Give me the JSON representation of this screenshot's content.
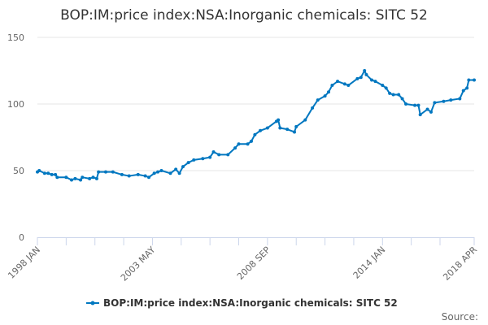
{
  "chart_data": {
    "type": "line",
    "title": "BOP:IM:price index:NSA:Inorganic chemicals: SITC 52",
    "xlabel": "",
    "ylabel": "",
    "ylim": [
      0,
      150
    ],
    "yticks": [
      "0",
      "50",
      "100",
      "150"
    ],
    "xrange": [
      "1998-01",
      "2018-04"
    ],
    "xtick_labels": [
      {
        "date": "1998-01",
        "label": "1998 JAN"
      },
      {
        "date": "2003-05",
        "label": "2003 MAY"
      },
      {
        "date": "2008-09",
        "label": "2008 SEP"
      },
      {
        "date": "2014-01",
        "label": "2014 JAN"
      },
      {
        "date": "2018-04",
        "label": "2018 APR"
      }
    ],
    "minor_tick_dates": [
      "1999-05",
      "2000-09",
      "2002-01",
      "2004-09",
      "2006-01",
      "2007-05",
      "2010-01",
      "2011-05",
      "2012-09",
      "2015-05",
      "2016-09"
    ],
    "grid": true,
    "legend_position": "bottom",
    "series": [
      {
        "name": "BOP:IM:price index:NSA:Inorganic chemicals: SITC 52",
        "color": "#0077c0",
        "points": [
          [
            "1998-01",
            49
          ],
          [
            "1998-02",
            50
          ],
          [
            "1998-05",
            48
          ],
          [
            "1998-07",
            48
          ],
          [
            "1998-09",
            47
          ],
          [
            "1998-11",
            47
          ],
          [
            "1998-12",
            45
          ],
          [
            "1999-05",
            45
          ],
          [
            "1999-08",
            43
          ],
          [
            "1999-10",
            44
          ],
          [
            "2000-01",
            43
          ],
          [
            "2000-02",
            45
          ],
          [
            "2000-06",
            44
          ],
          [
            "2000-08",
            45
          ],
          [
            "2000-10",
            44
          ],
          [
            "2000-11",
            49
          ],
          [
            "2001-03",
            49
          ],
          [
            "2001-07",
            49
          ],
          [
            "2001-12",
            47
          ],
          [
            "2002-04",
            46
          ],
          [
            "2002-09",
            47
          ],
          [
            "2003-01",
            46
          ],
          [
            "2003-03",
            45
          ],
          [
            "2003-06",
            48
          ],
          [
            "2003-08",
            49
          ],
          [
            "2003-10",
            50
          ],
          [
            "2004-03",
            48
          ],
          [
            "2004-06",
            51
          ],
          [
            "2004-08",
            48
          ],
          [
            "2004-10",
            53
          ],
          [
            "2005-01",
            56
          ],
          [
            "2005-04",
            58
          ],
          [
            "2005-09",
            59
          ],
          [
            "2006-01",
            60
          ],
          [
            "2006-03",
            64
          ],
          [
            "2006-06",
            62
          ],
          [
            "2006-11",
            62
          ],
          [
            "2007-03",
            67
          ],
          [
            "2007-05",
            70
          ],
          [
            "2007-10",
            70
          ],
          [
            "2007-12",
            72
          ],
          [
            "2008-02",
            77
          ],
          [
            "2008-05",
            80
          ],
          [
            "2008-09",
            82
          ],
          [
            "2009-02",
            87
          ],
          [
            "2009-03",
            88
          ],
          [
            "2009-04",
            82
          ],
          [
            "2009-08",
            81
          ],
          [
            "2009-12",
            79
          ],
          [
            "2010-01",
            83
          ],
          [
            "2010-06",
            88
          ],
          [
            "2010-10",
            97
          ],
          [
            "2011-01",
            103
          ],
          [
            "2011-05",
            106
          ],
          [
            "2011-07",
            109
          ],
          [
            "2011-09",
            114
          ],
          [
            "2011-12",
            117
          ],
          [
            "2012-04",
            115
          ],
          [
            "2012-06",
            114
          ],
          [
            "2012-11",
            119
          ],
          [
            "2013-01",
            120
          ],
          [
            "2013-03",
            125
          ],
          [
            "2013-04",
            122
          ],
          [
            "2013-07",
            118
          ],
          [
            "2013-09",
            117
          ],
          [
            "2014-01",
            114
          ],
          [
            "2014-03",
            112
          ],
          [
            "2014-05",
            108
          ],
          [
            "2014-07",
            107
          ],
          [
            "2014-10",
            107
          ],
          [
            "2014-12",
            104
          ],
          [
            "2015-02",
            100
          ],
          [
            "2015-07",
            99
          ],
          [
            "2015-09",
            99
          ],
          [
            "2015-10",
            92
          ],
          [
            "2016-02",
            96
          ],
          [
            "2016-04",
            94
          ],
          [
            "2016-06",
            101
          ],
          [
            "2016-11",
            102
          ],
          [
            "2017-03",
            103
          ],
          [
            "2017-08",
            104
          ],
          [
            "2017-10",
            110
          ],
          [
            "2017-12",
            112
          ],
          [
            "2018-01",
            118
          ],
          [
            "2018-04",
            118
          ]
        ]
      }
    ]
  },
  "source_label": "Source:"
}
